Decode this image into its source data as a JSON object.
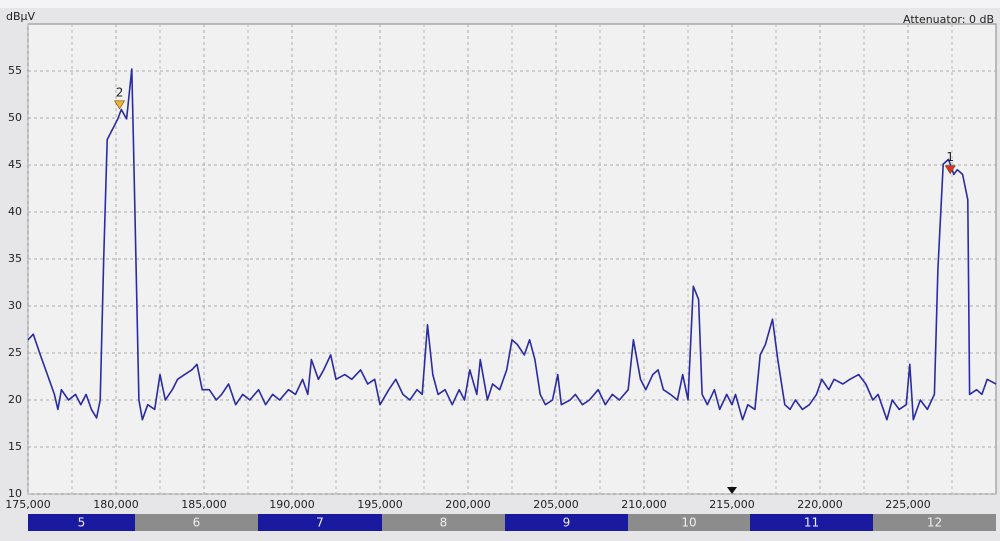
{
  "chart_data": {
    "type": "line",
    "y_unit": "dBµV",
    "annotation": "Attenuator: 0 dB",
    "xlim": [
      175000,
      230000
    ],
    "ylim": [
      10,
      60
    ],
    "xticks": [
      {
        "value": 175000,
        "label": "175,000"
      },
      {
        "value": 180000,
        "label": "180,000"
      },
      {
        "value": 185000,
        "label": "185,000"
      },
      {
        "value": 190000,
        "label": "190,000"
      },
      {
        "value": 195000,
        "label": "195,000"
      },
      {
        "value": 200000,
        "label": "200,000"
      },
      {
        "value": 205000,
        "label": "205,000"
      },
      {
        "value": 210000,
        "label": "210,000"
      },
      {
        "value": 215000,
        "label": "215,000"
      },
      {
        "value": 220000,
        "label": "220,000"
      },
      {
        "value": 225000,
        "label": "225,000"
      }
    ],
    "yticks": [
      10,
      15,
      20,
      25,
      30,
      35,
      40,
      45,
      50,
      55
    ],
    "grid": true,
    "color": "#2b2ba3",
    "x": [
      175000,
      175300,
      175700,
      176100,
      176500,
      176700,
      176900,
      177300,
      177700,
      178000,
      178300,
      178600,
      178900,
      179100,
      179300,
      179500,
      179800,
      180100,
      180300,
      180600,
      180900,
      181000,
      181300,
      181500,
      181800,
      182200,
      182500,
      182800,
      183200,
      183500,
      183900,
      184300,
      184600,
      184900,
      185300,
      185700,
      186000,
      186400,
      186800,
      187200,
      187600,
      188100,
      188500,
      188900,
      189300,
      189800,
      190200,
      190600,
      190900,
      191100,
      191500,
      191800,
      192200,
      192500,
      193000,
      193400,
      193900,
      194300,
      194700,
      195000,
      195500,
      195900,
      196300,
      196700,
      197100,
      197400,
      197700,
      198000,
      198300,
      198700,
      199100,
      199500,
      199800,
      200100,
      200500,
      200700,
      201100,
      201400,
      201800,
      202200,
      202500,
      202800,
      203200,
      203500,
      203800,
      204100,
      204400,
      204800,
      205100,
      205300,
      205800,
      206100,
      206500,
      206900,
      207400,
      207800,
      208200,
      208600,
      209100,
      209400,
      209800,
      210100,
      210500,
      210800,
      211100,
      211500,
      211900,
      212200,
      212500,
      212800,
      213100,
      213300,
      213600,
      214000,
      214300,
      214700,
      215000,
      215200,
      215600,
      215900,
      216300,
      216600,
      216900,
      217300,
      217600,
      218000,
      218300,
      218600,
      219000,
      219400,
      219800,
      220100,
      220500,
      220800,
      221300,
      221700,
      222200,
      222600,
      223000,
      223300,
      223800,
      224100,
      224500,
      224900,
      225100,
      225300,
      225700,
      226100,
      226500,
      226700,
      227000,
      227300,
      227600,
      227800,
      228100,
      228400,
      228500,
      228900,
      229200,
      229500,
      230000
    ],
    "values": [
      26.4,
      27,
      24.8,
      22.7,
      20.6,
      19,
      21.1,
      20,
      20.6,
      19.5,
      20.6,
      19,
      18.1,
      20,
      35,
      47.7,
      48.8,
      49.9,
      50.9,
      49.9,
      55.2,
      46.7,
      20,
      17.9,
      19.5,
      19,
      22.7,
      20,
      21.1,
      22.2,
      22.7,
      23.2,
      23.8,
      21.1,
      21.1,
      20,
      20.6,
      21.7,
      19.5,
      20.6,
      20,
      21.1,
      19.5,
      20.6,
      20,
      21.1,
      20.6,
      22.2,
      20.6,
      24.3,
      22.2,
      23.2,
      24.8,
      22.2,
      22.7,
      22.2,
      23.2,
      21.7,
      22.2,
      19.5,
      21.1,
      22.2,
      20.6,
      20,
      21.1,
      20.6,
      28,
      22.7,
      20.6,
      21.1,
      19.5,
      21.1,
      20,
      23.2,
      20.6,
      24.3,
      20,
      21.7,
      21.1,
      23.2,
      26.4,
      25.9,
      24.8,
      26.4,
      24.3,
      20.6,
      19.5,
      20,
      22.7,
      19.5,
      20,
      20.6,
      19.5,
      20,
      21.1,
      19.5,
      20.6,
      20,
      21.1,
      26.4,
      22.2,
      21.1,
      22.7,
      23.2,
      21.1,
      20.6,
      20,
      22.7,
      20,
      32.1,
      30.7,
      20.6,
      19.5,
      21.1,
      19,
      20.6,
      19.5,
      20.6,
      17.9,
      19.5,
      19,
      24.8,
      25.9,
      28.6,
      24.3,
      19.5,
      19,
      20,
      19,
      19.5,
      20.6,
      22.2,
      21.1,
      22.2,
      21.7,
      22.2,
      22.7,
      21.7,
      20,
      20.6,
      17.9,
      20,
      19,
      19.5,
      23.8,
      17.9,
      20,
      19,
      20.6,
      33.9,
      45.1,
      45.6,
      44,
      44.5,
      44,
      41.3,
      20.6,
      21.1,
      20.6,
      22.2,
      21.7
    ],
    "markers": [
      {
        "label": "2",
        "x": 180200,
        "y": 51.4,
        "color": "#f2b233"
      },
      {
        "label": "1",
        "x": 227400,
        "y": 44.5,
        "color": "#d8332a"
      }
    ],
    "channel_bands": [
      "5",
      "6",
      "7",
      "8",
      "9",
      "10",
      "11",
      "12"
    ],
    "band_colors": [
      "#1a1aa0",
      "#8c8c8c"
    ]
  }
}
